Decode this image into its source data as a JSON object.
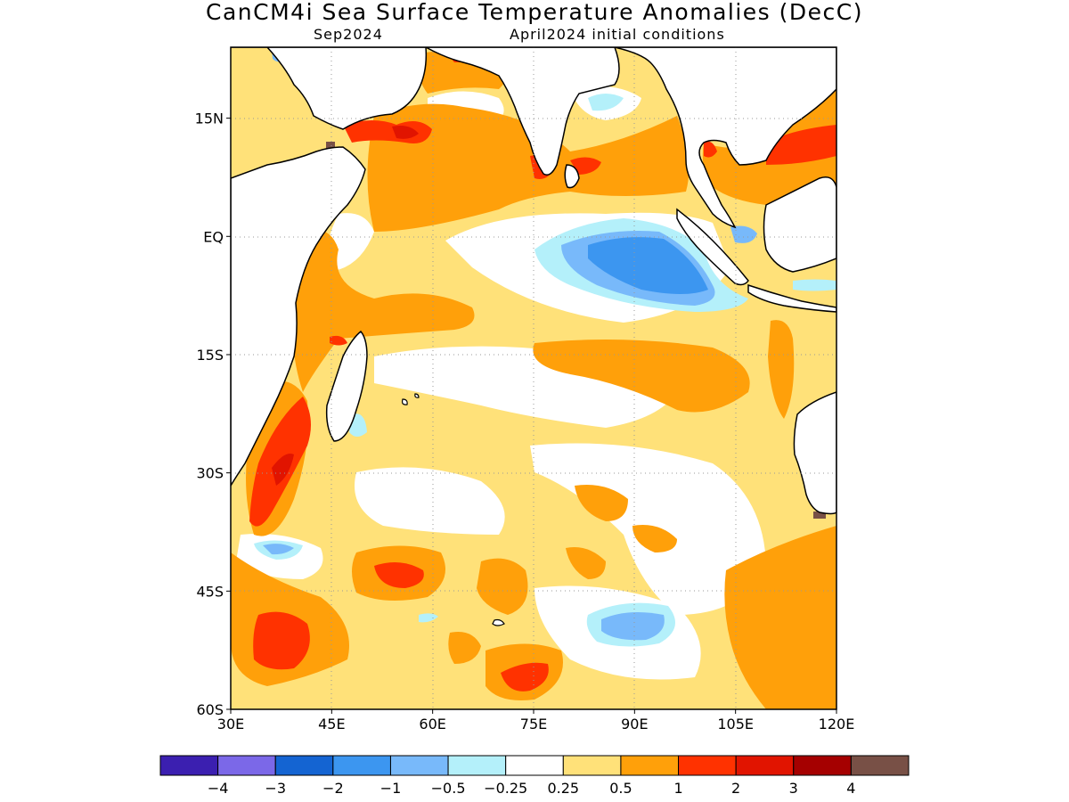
{
  "title": "CanCM4i Sea Surface Temperature Anomalies (DecC)",
  "subtitle_left": "Sep2024",
  "subtitle_right": "April2024 initial conditions",
  "map": {
    "lon_range": [
      30,
      120
    ],
    "lat_range": [
      -60,
      24
    ],
    "lon_ticks": [
      {
        "value": 30,
        "label": "30E"
      },
      {
        "value": 45,
        "label": "45E"
      },
      {
        "value": 60,
        "label": "60E"
      },
      {
        "value": 75,
        "label": "75E"
      },
      {
        "value": 90,
        "label": "90E"
      },
      {
        "value": 105,
        "label": "105E"
      },
      {
        "value": 120,
        "label": "120E"
      }
    ],
    "lat_ticks": [
      {
        "value": 15,
        "label": "15N"
      },
      {
        "value": 0,
        "label": "EQ"
      },
      {
        "value": -15,
        "label": "15S"
      },
      {
        "value": -30,
        "label": "30S"
      },
      {
        "value": -45,
        "label": "45S"
      },
      {
        "value": -60,
        "label": "60S"
      }
    ],
    "grid": "dotted"
  },
  "colorbar": {
    "colors": [
      "#3b1fb0",
      "#7b68e8",
      "#1464d2",
      "#3c96f0",
      "#78b9fa",
      "#b4f0fa",
      "#ffffff",
      "#ffe179",
      "#ffa00a",
      "#ff3200",
      "#e11400",
      "#a50000",
      "#785046"
    ],
    "labels": [
      "−4",
      "−3",
      "−2",
      "−1",
      "−0.5",
      "−0.25",
      "0.25",
      "0.5",
      "1",
      "2",
      "3",
      "4"
    ]
  }
}
